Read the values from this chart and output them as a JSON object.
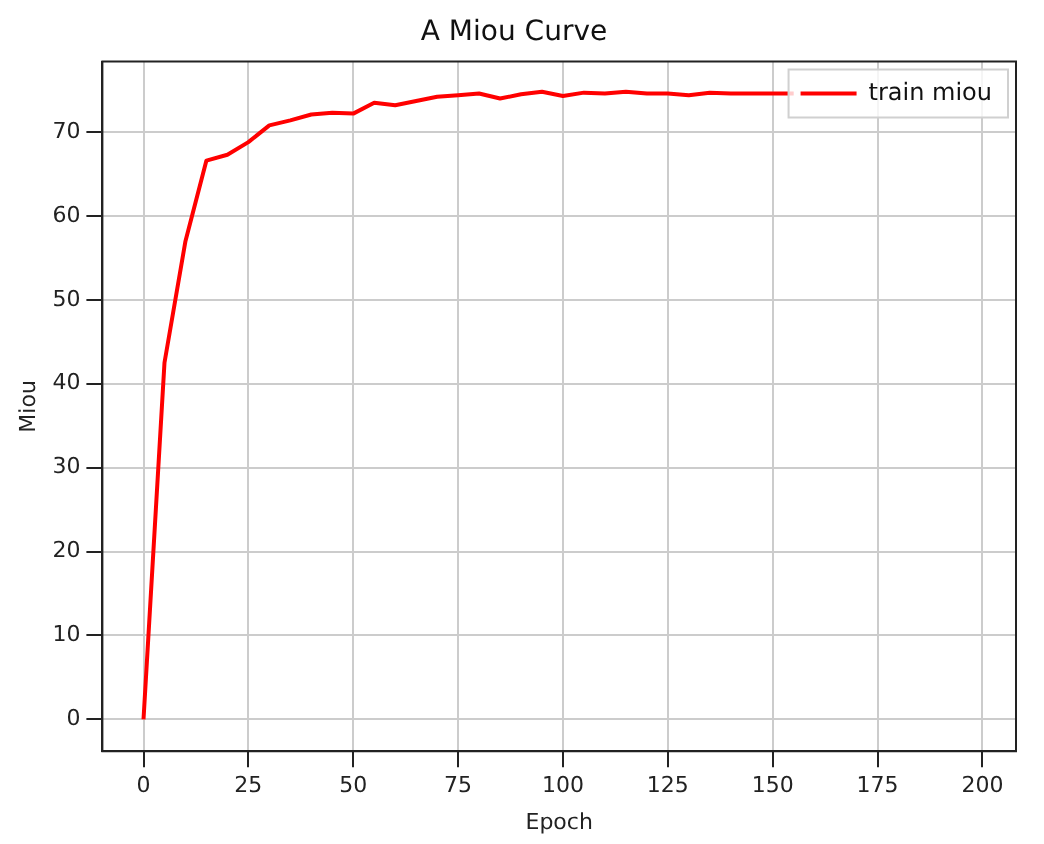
{
  "chart_data": {
    "type": "line",
    "title": "A Miou Curve",
    "xlabel": "Epoch",
    "ylabel": "Miou",
    "x": [
      0,
      5,
      10,
      15,
      20,
      25,
      30,
      35,
      40,
      45,
      50,
      55,
      60,
      65,
      70,
      75,
      80,
      85,
      90,
      95,
      100,
      105,
      110,
      115,
      120,
      125,
      130,
      135,
      140,
      145,
      150,
      155
    ],
    "series": [
      {
        "name": "train miou",
        "color": "#ff0000",
        "values": [
          0,
          42.5,
          57,
          66.6,
          67.3,
          68.8,
          70.8,
          71.4,
          72.1,
          72.3,
          72.2,
          73.5,
          73.2,
          73.7,
          74.2,
          74.4,
          74.6,
          74,
          74.5,
          74.8,
          74.3,
          74.7,
          74.6,
          74.8,
          74.6,
          74.6,
          74.4,
          74.7,
          74.6,
          74.6,
          74.6,
          74.6
        ]
      }
    ],
    "xlim": [
      -9.8,
      208
    ],
    "ylim": [
      -3.8,
      78.4
    ],
    "xticks": [
      0,
      25,
      50,
      75,
      100,
      125,
      150,
      175,
      200
    ],
    "yticks": [
      0,
      10,
      20,
      30,
      40,
      50,
      60,
      70
    ],
    "grid": true,
    "legend": "top right",
    "marker": "none",
    "line_style": "solid"
  }
}
